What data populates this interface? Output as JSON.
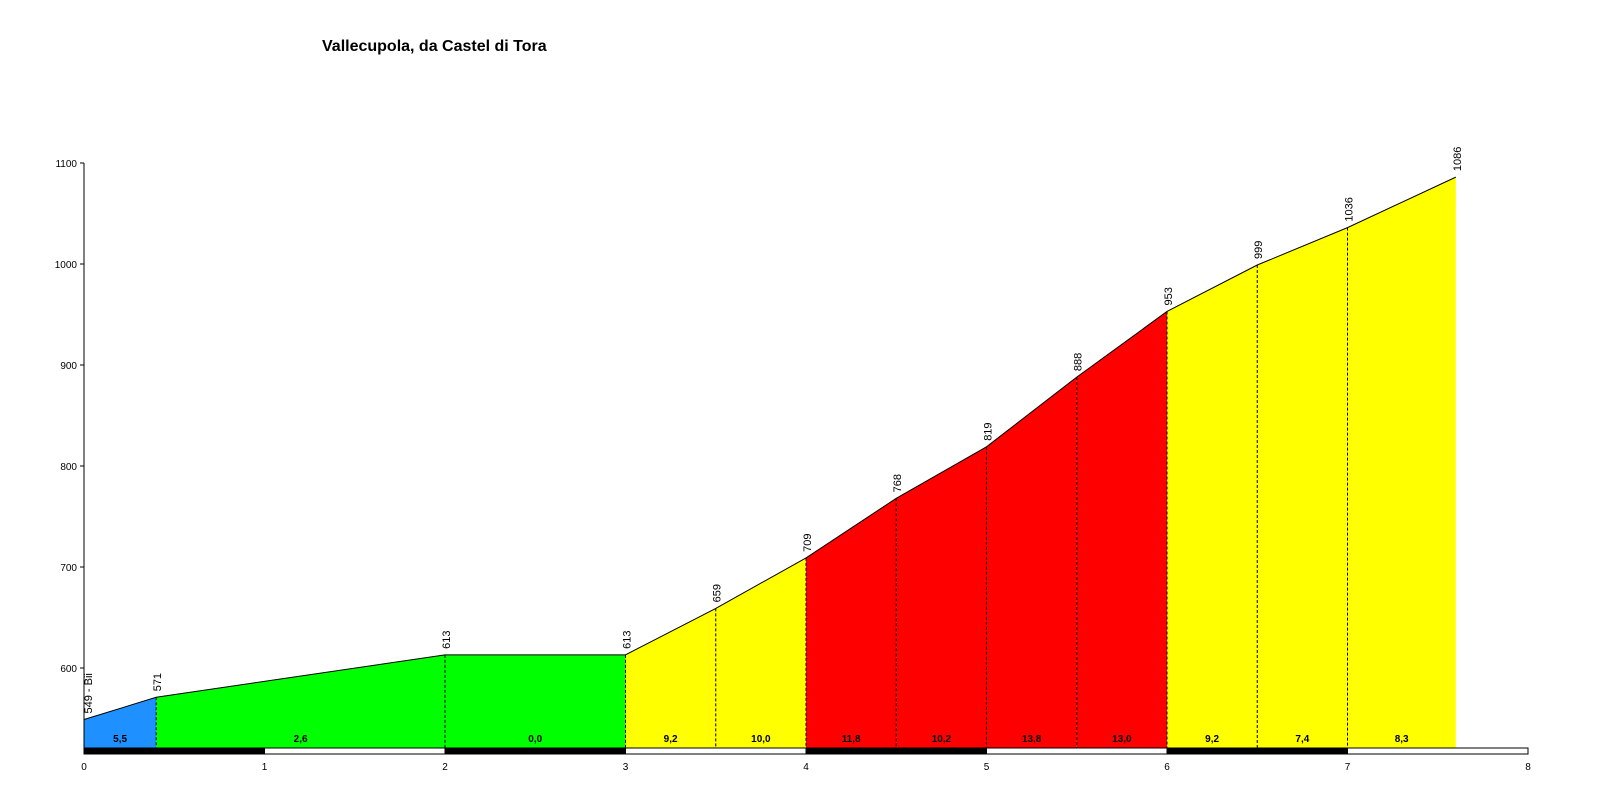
{
  "chart_data": {
    "type": "area",
    "title": "Vallecupola, da Castel di Tora",
    "xlabel": "",
    "ylabel": "",
    "xlim": [
      0,
      8
    ],
    "ylim": [
      520,
      1100
    ],
    "x_ticks": [
      "0",
      "1",
      "2",
      "3",
      "4",
      "5",
      "6",
      "7",
      "8"
    ],
    "y_ticks": [
      "600",
      "700",
      "800",
      "900",
      "1000",
      "1100"
    ],
    "points": [
      {
        "x": 0.0,
        "y": 549,
        "label": "549 - Bii"
      },
      {
        "x": 0.4,
        "y": 571,
        "label": "571"
      },
      {
        "x": 2.0,
        "y": 613,
        "label": "613"
      },
      {
        "x": 3.0,
        "y": 613,
        "label": "613"
      },
      {
        "x": 3.5,
        "y": 659,
        "label": "659"
      },
      {
        "x": 4.0,
        "y": 709,
        "label": "709"
      },
      {
        "x": 4.5,
        "y": 768,
        "label": "768"
      },
      {
        "x": 5.0,
        "y": 819,
        "label": "819"
      },
      {
        "x": 5.5,
        "y": 888,
        "label": "888"
      },
      {
        "x": 6.0,
        "y": 953,
        "label": "953"
      },
      {
        "x": 6.5,
        "y": 999,
        "label": "999"
      },
      {
        "x": 7.0,
        "y": 1036,
        "label": "1036"
      },
      {
        "x": 7.6,
        "y": 1086,
        "label": "1086"
      }
    ],
    "segments": [
      {
        "from": 0.0,
        "to": 0.4,
        "gradient": "5,5",
        "color": "#1e90ff"
      },
      {
        "from": 0.4,
        "to": 2.0,
        "gradient": "2,6",
        "color": "#00ff00"
      },
      {
        "from": 2.0,
        "to": 3.0,
        "gradient": "0,0",
        "color": "#00ff00"
      },
      {
        "from": 3.0,
        "to": 3.5,
        "gradient": "9,2",
        "color": "#ffff00"
      },
      {
        "from": 3.5,
        "to": 4.0,
        "gradient": "10,0",
        "color": "#ffff00"
      },
      {
        "from": 4.0,
        "to": 4.5,
        "gradient": "11,8",
        "color": "#ff0000"
      },
      {
        "from": 4.5,
        "to": 5.0,
        "gradient": "10,2",
        "color": "#ff0000"
      },
      {
        "from": 5.0,
        "to": 5.5,
        "gradient": "13,8",
        "color": "#ff0000"
      },
      {
        "from": 5.5,
        "to": 6.0,
        "gradient": "13,0",
        "color": "#ff0000"
      },
      {
        "from": 6.0,
        "to": 6.5,
        "gradient": "9,2",
        "color": "#ffff00"
      },
      {
        "from": 6.5,
        "to": 7.0,
        "gradient": "7,4",
        "color": "#ffff00"
      },
      {
        "from": 7.0,
        "to": 7.6,
        "gradient": "8,3",
        "color": "#ffff00"
      }
    ],
    "km_bar_colors": [
      "#000000",
      "#ffffff"
    ],
    "grid": false,
    "legend": "none"
  }
}
